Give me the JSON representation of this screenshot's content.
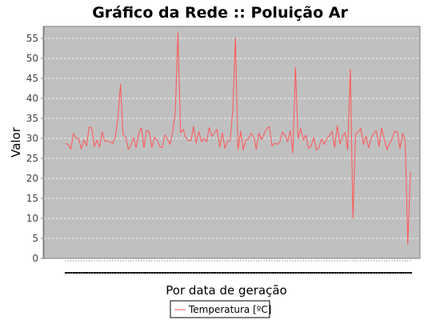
{
  "chart_data": {
    "type": "line",
    "title": "Gráfico da Rede :: Poluição Ar",
    "xlabel": "Por data de geração",
    "ylabel": "Valor",
    "ylim": [
      0,
      58
    ],
    "yticks": [
      0,
      5,
      10,
      15,
      20,
      25,
      30,
      35,
      40,
      45,
      50,
      55
    ],
    "grid": true,
    "legend_position": "bottom-center",
    "colors": {
      "plot_background": "#c0c0c0",
      "series": "#ff5555",
      "gridline": "#ffffff"
    },
    "series": [
      {
        "name": "Temperatura [ºC]",
        "values": [
          28.7,
          28.5,
          27.3,
          31.2,
          30.1,
          29.9,
          27.4,
          29.6,
          28.1,
          32.8,
          32.6,
          28.0,
          29.6,
          27.8,
          31.6,
          29.3,
          29.3,
          29.1,
          28.7,
          30.2,
          35.0,
          43.5,
          30.9,
          30.4,
          27.3,
          28.3,
          30.2,
          27.7,
          31.3,
          32.6,
          27.7,
          32.1,
          31.6,
          27.7,
          30.3,
          29.6,
          27.9,
          27.7,
          30.9,
          29.8,
          28.5,
          31.8,
          36.5,
          56.5,
          31.4,
          32.3,
          30.1,
          29.5,
          29.4,
          33.0,
          28.8,
          31.7,
          29.2,
          30.0,
          29.1,
          32.7,
          30.5,
          31.4,
          32.2,
          27.8,
          31.4,
          27.5,
          29.3,
          29.5,
          37.0,
          55.2,
          27.2,
          31.8,
          27.1,
          29.7,
          29.8,
          31.3,
          30.4,
          27.3,
          31.3,
          29.7,
          31.1,
          32.5,
          32.9,
          28.1,
          28.8,
          28.5,
          29.1,
          31.6,
          30.8,
          29.1,
          31.9,
          26.4,
          47.8,
          30.0,
          32.5,
          29.6,
          30.8,
          27.5,
          28.1,
          30.2,
          27.1,
          27.7,
          29.9,
          28.5,
          30.0,
          30.7,
          31.7,
          27.7,
          33.2,
          28.6,
          30.5,
          31.5,
          27.2,
          47.3,
          10.0,
          31.2,
          31.5,
          32.6,
          28.5,
          30.6,
          27.6,
          30.1,
          31.3,
          31.9,
          28.0,
          32.6,
          29.8,
          27.2,
          28.7,
          29.9,
          31.8,
          31.6,
          27.4,
          31.2,
          29.6,
          3.5,
          21.6
        ]
      }
    ]
  }
}
